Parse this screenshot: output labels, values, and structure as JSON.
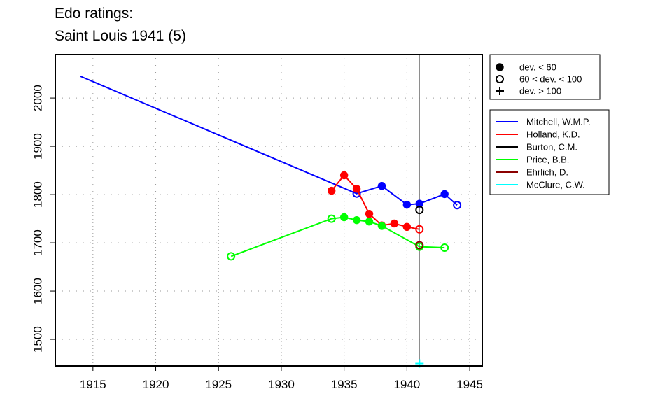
{
  "title_lines": [
    "Edo ratings:",
    "Saint Louis 1941 (5)"
  ],
  "chart_data": {
    "type": "line",
    "title": "Edo ratings: Saint Louis 1941 (5)",
    "xlabel": "",
    "ylabel": "",
    "xlim": [
      1912,
      1946
    ],
    "ylim": [
      1445,
      2090
    ],
    "x_ticks": [
      1915,
      1920,
      1925,
      1930,
      1935,
      1940,
      1945
    ],
    "y_ticks": [
      1500,
      1600,
      1700,
      1800,
      1900,
      2000
    ],
    "grid": true,
    "reference_line_x": 1941,
    "series": [
      {
        "name": "Mitchell, W.M.P.",
        "color": "#0000ff",
        "points": [
          {
            "x": 1914,
            "y": 2045,
            "marker": "none"
          },
          {
            "x": 1936,
            "y": 1802,
            "marker": "open"
          },
          {
            "x": 1938,
            "y": 1818,
            "marker": "filled"
          },
          {
            "x": 1940,
            "y": 1779,
            "marker": "filled"
          },
          {
            "x": 1941,
            "y": 1781,
            "marker": "filled"
          },
          {
            "x": 1943,
            "y": 1801,
            "marker": "filled"
          },
          {
            "x": 1944,
            "y": 1778,
            "marker": "open"
          }
        ]
      },
      {
        "name": "Holland, K.D.",
        "color": "#ff0000",
        "points": [
          {
            "x": 1934,
            "y": 1808,
            "marker": "filled"
          },
          {
            "x": 1935,
            "y": 1840,
            "marker": "filled"
          },
          {
            "x": 1936,
            "y": 1812,
            "marker": "filled"
          },
          {
            "x": 1937,
            "y": 1760,
            "marker": "filled"
          },
          {
            "x": 1938,
            "y": 1736,
            "marker": "filled"
          },
          {
            "x": 1939,
            "y": 1740,
            "marker": "filled"
          },
          {
            "x": 1940,
            "y": 1733,
            "marker": "filled"
          },
          {
            "x": 1941,
            "y": 1728,
            "marker": "open"
          }
        ]
      },
      {
        "name": "Burton, C.M.",
        "color": "#000000",
        "points": [
          {
            "x": 1941,
            "y": 1768,
            "marker": "open"
          }
        ]
      },
      {
        "name": "Price, B.B.",
        "color": "#00ff00",
        "points": [
          {
            "x": 1926,
            "y": 1672,
            "marker": "open"
          },
          {
            "x": 1934,
            "y": 1750,
            "marker": "open"
          },
          {
            "x": 1935,
            "y": 1753,
            "marker": "filled"
          },
          {
            "x": 1936,
            "y": 1747,
            "marker": "filled"
          },
          {
            "x": 1937,
            "y": 1744,
            "marker": "filled"
          },
          {
            "x": 1938,
            "y": 1735,
            "marker": "filled"
          },
          {
            "x": 1941,
            "y": 1692,
            "marker": "open"
          },
          {
            "x": 1943,
            "y": 1690,
            "marker": "open"
          }
        ]
      },
      {
        "name": "Ehrlich, D.",
        "color": "#8b0000",
        "points": [
          {
            "x": 1941,
            "y": 1695,
            "marker": "open"
          }
        ]
      },
      {
        "name": "McClure, C.W.",
        "color": "#00ffff",
        "points": [
          {
            "x": 1941,
            "y": 1450,
            "marker": "plus"
          }
        ]
      }
    ],
    "marker_legend": [
      {
        "marker": "filled",
        "label": "dev. < 60"
      },
      {
        "marker": "open",
        "label": "60 < dev. < 100"
      },
      {
        "marker": "plus",
        "label": "dev. > 100"
      }
    ]
  }
}
